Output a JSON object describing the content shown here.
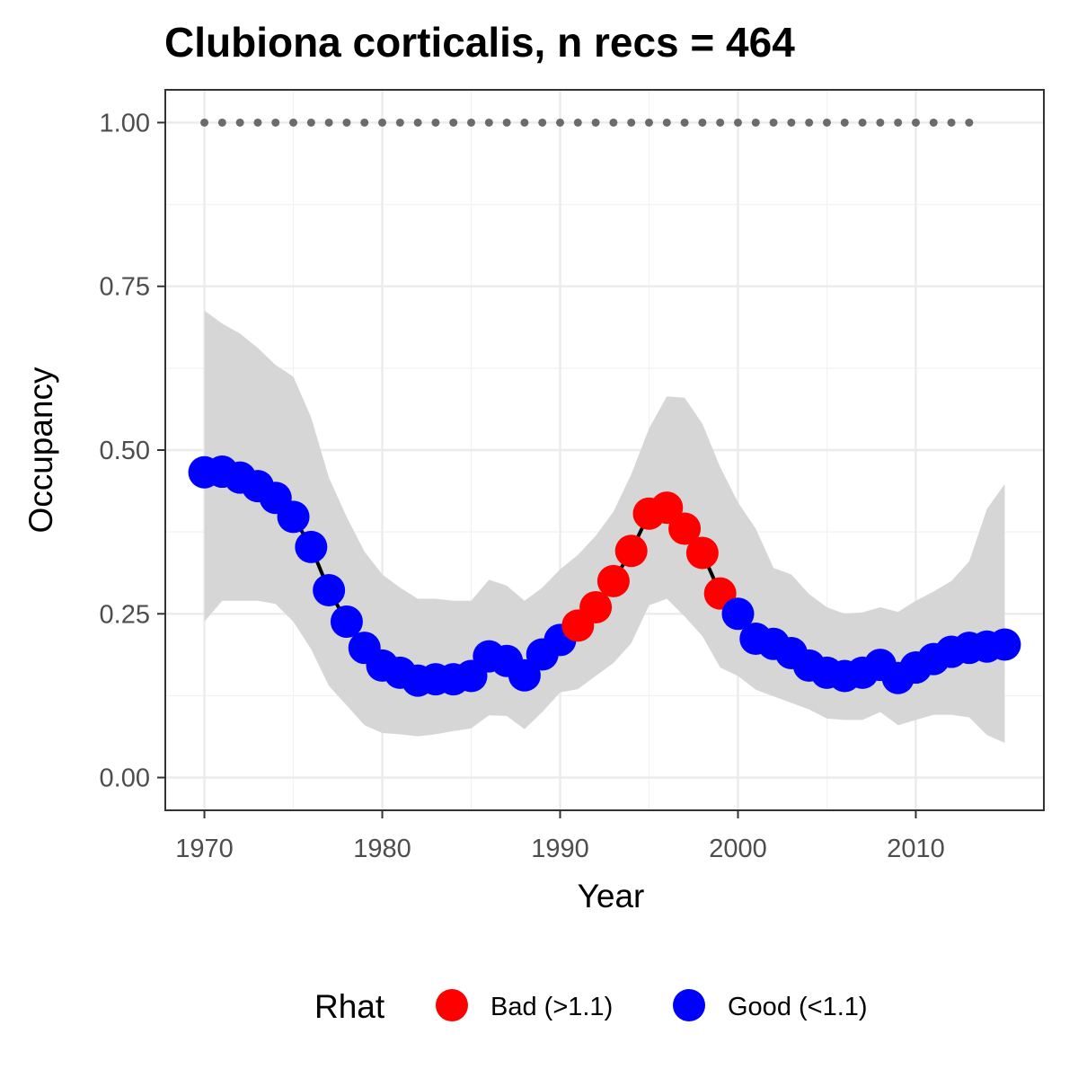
{
  "chart_data": {
    "type": "line",
    "title": "Clubiona corticalis, n recs = 464",
    "xlabel": "Year",
    "ylabel": "Occupancy",
    "xlim": [
      1967.8,
      2017.2
    ],
    "ylim": [
      -0.05,
      1.05
    ],
    "x_ticks": [
      1970,
      1980,
      1990,
      2000,
      2010
    ],
    "x_tick_labels": [
      "1970",
      "1980",
      "1990",
      "2000",
      "2010"
    ],
    "y_ticks": [
      0,
      0.25,
      0.5,
      0.75,
      1.0
    ],
    "y_tick_labels": [
      "0.00",
      "0.25",
      "0.50",
      "0.75",
      "1.00"
    ],
    "grid": true,
    "legend": {
      "title": "Rhat",
      "position": "bottom",
      "entries": [
        {
          "label": "Bad (>1.1)",
          "color": "#ff0000"
        },
        {
          "label": "Good (<1.1)",
          "color": "#0000ff"
        }
      ]
    },
    "colors": {
      "Bad": "#ff0000",
      "Good": "#0000ff",
      "line": "#000000",
      "ribbon": "#d6d6d6",
      "reference": "#6b6b6b"
    },
    "reference_points": {
      "x": [
        1970,
        1971,
        1972,
        1973,
        1974,
        1975,
        1976,
        1977,
        1978,
        1979,
        1980,
        1981,
        1982,
        1983,
        1984,
        1985,
        1986,
        1987,
        1988,
        1989,
        1990,
        1991,
        1992,
        1993,
        1994,
        1995,
        1996,
        1997,
        1998,
        1999,
        2000,
        2001,
        2002,
        2003,
        2004,
        2005,
        2006,
        2007,
        2008,
        2009,
        2010,
        2011,
        2012,
        2013
      ],
      "y": 1.0
    },
    "x": [
      1970,
      1971,
      1972,
      1973,
      1974,
      1975,
      1976,
      1977,
      1978,
      1979,
      1980,
      1981,
      1982,
      1983,
      1984,
      1985,
      1986,
      1987,
      1988,
      1989,
      1990,
      1991,
      1992,
      1993,
      1994,
      1995,
      1996,
      1997,
      1998,
      1999,
      2000,
      2001,
      2002,
      2003,
      2004,
      2005,
      2006,
      2007,
      2008,
      2009,
      2010,
      2011,
      2012,
      2013,
      2014,
      2015
    ],
    "mean": [
      0.466,
      0.467,
      0.458,
      0.445,
      0.427,
      0.398,
      0.352,
      0.286,
      0.238,
      0.198,
      0.171,
      0.16,
      0.148,
      0.15,
      0.15,
      0.155,
      0.185,
      0.178,
      0.156,
      0.188,
      0.21,
      0.232,
      0.26,
      0.3,
      0.346,
      0.403,
      0.412,
      0.38,
      0.343,
      0.281,
      0.25,
      0.212,
      0.204,
      0.19,
      0.171,
      0.16,
      0.155,
      0.16,
      0.172,
      0.152,
      0.168,
      0.181,
      0.192,
      0.198,
      0.2,
      0.203
    ],
    "lower": [
      0.238,
      0.27,
      0.27,
      0.27,
      0.265,
      0.238,
      0.196,
      0.14,
      0.11,
      0.08,
      0.068,
      0.066,
      0.063,
      0.066,
      0.071,
      0.075,
      0.095,
      0.094,
      0.074,
      0.1,
      0.13,
      0.135,
      0.155,
      0.175,
      0.205,
      0.263,
      0.273,
      0.246,
      0.216,
      0.168,
      0.155,
      0.134,
      0.124,
      0.114,
      0.104,
      0.09,
      0.088,
      0.088,
      0.1,
      0.08,
      0.088,
      0.096,
      0.096,
      0.092,
      0.065,
      0.053
    ],
    "upper": [
      0.713,
      0.693,
      0.678,
      0.656,
      0.63,
      0.612,
      0.55,
      0.458,
      0.398,
      0.345,
      0.31,
      0.29,
      0.273,
      0.273,
      0.27,
      0.27,
      0.302,
      0.293,
      0.27,
      0.29,
      0.318,
      0.34,
      0.369,
      0.406,
      0.463,
      0.533,
      0.582,
      0.58,
      0.54,
      0.474,
      0.42,
      0.38,
      0.32,
      0.31,
      0.28,
      0.26,
      0.25,
      0.252,
      0.26,
      0.253,
      0.27,
      0.284,
      0.3,
      0.33,
      0.41,
      0.448
    ],
    "rhat": [
      "Good",
      "Good",
      "Good",
      "Good",
      "Good",
      "Good",
      "Good",
      "Good",
      "Good",
      "Good",
      "Good",
      "Good",
      "Good",
      "Good",
      "Good",
      "Good",
      "Good",
      "Good",
      "Good",
      "Good",
      "Good",
      "Bad",
      "Bad",
      "Bad",
      "Bad",
      "Bad",
      "Bad",
      "Bad",
      "Bad",
      "Bad",
      "Good",
      "Good",
      "Good",
      "Good",
      "Good",
      "Good",
      "Good",
      "Good",
      "Good",
      "Good",
      "Good",
      "Good",
      "Good",
      "Good",
      "Good",
      "Good"
    ]
  }
}
